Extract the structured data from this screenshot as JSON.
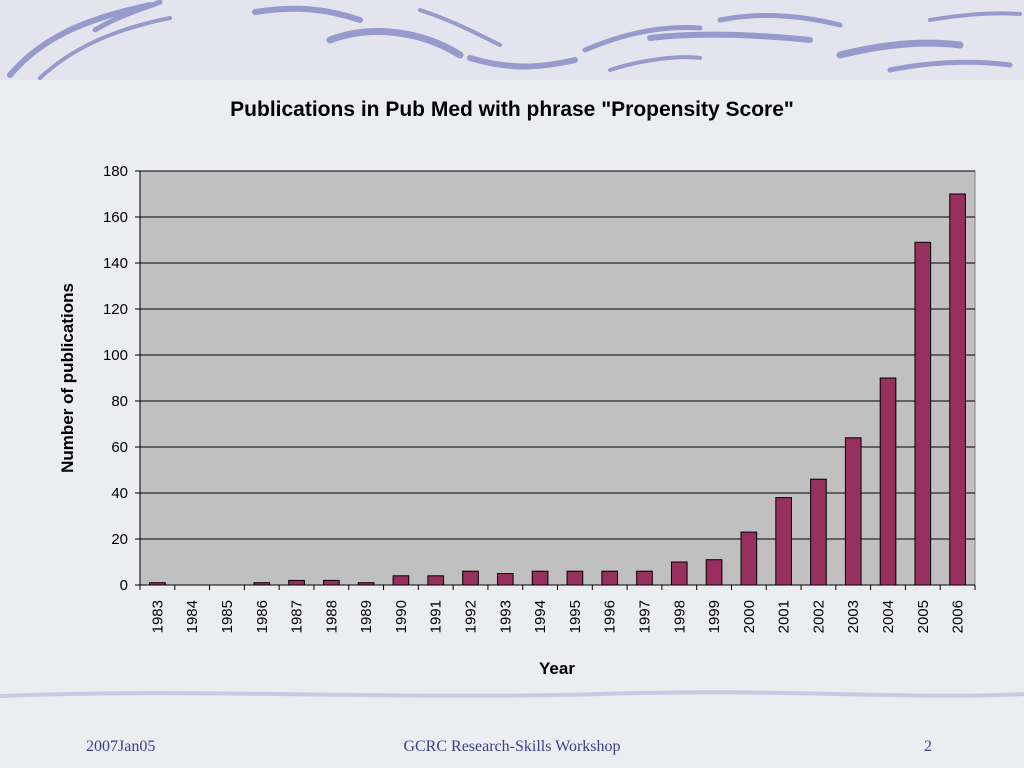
{
  "colors": {
    "bar_fill": "#98305f",
    "plot_background": "#c0c0c0",
    "footer_text": "#3a3f8c",
    "decor_swoosh": "#8e93c8"
  },
  "footer": {
    "date": "2007Jan05",
    "title": "GCRC Research-Skills Workshop",
    "page": "2"
  },
  "chart_data": {
    "type": "bar",
    "title": "Publications in Pub Med with phrase \"Propensity Score\"",
    "xlabel": "Year",
    "ylabel": "Number of publications",
    "categories": [
      "1983",
      "1984",
      "1985",
      "1986",
      "1987",
      "1988",
      "1989",
      "1990",
      "1991",
      "1992",
      "1993",
      "1994",
      "1995",
      "1996",
      "1997",
      "1998",
      "1999",
      "2000",
      "2001",
      "2002",
      "2003",
      "2004",
      "2005",
      "2006"
    ],
    "values": [
      1,
      0,
      0,
      1,
      2,
      2,
      1,
      4,
      4,
      6,
      5,
      6,
      6,
      6,
      6,
      10,
      11,
      23,
      38,
      46,
      64,
      90,
      149,
      170
    ],
    "ylim": [
      0,
      180
    ],
    "yticks": [
      0,
      20,
      40,
      60,
      80,
      100,
      120,
      140,
      160,
      180
    ],
    "grid": "horizontal",
    "legend": "none"
  }
}
